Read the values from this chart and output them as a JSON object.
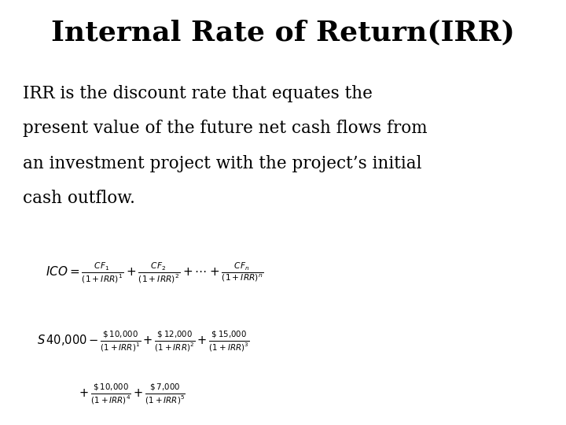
{
  "title": "Internal Rate of Return(IRR)",
  "background_color": "#ffffff",
  "text_color": "#000000",
  "body_line1": "IRR is the discount rate that equates the",
  "body_line2": "present value of the future net cash flows from",
  "body_line3": "an investment project with the project’s initial",
  "body_line4": "cash outflow.",
  "title_fontsize": 26,
  "body_fontsize": 15.5,
  "formula_fontsize": 11,
  "formula2_fontsize": 10.5
}
